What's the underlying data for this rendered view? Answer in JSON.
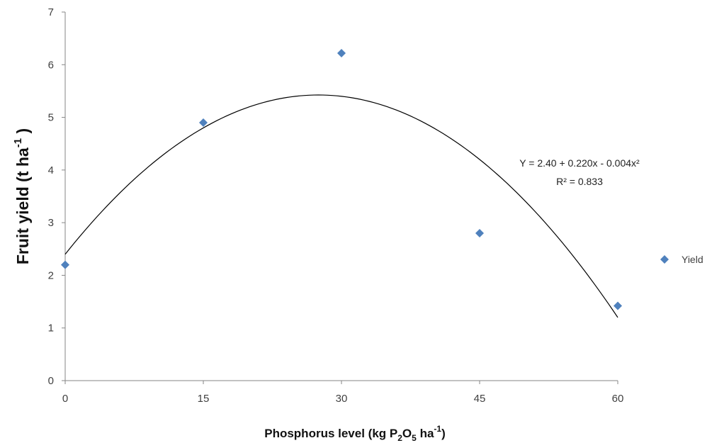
{
  "chart_data": {
    "type": "scatter",
    "x": [
      0,
      15,
      30,
      45,
      60
    ],
    "series": [
      {
        "name": "Yield",
        "values": [
          2.2,
          4.9,
          6.22,
          2.8,
          1.42
        ],
        "color": "#4f81bd",
        "marker": "diamond"
      }
    ],
    "trendline": {
      "kind": "polynomial-2",
      "coefficients": [
        2.4,
        0.22,
        -0.004
      ],
      "equation_text": "Y = 2.40 + 0.220x - 0.004x²",
      "r2_text": "R² = 0.833",
      "color": "#000000"
    },
    "xlim": [
      0,
      60
    ],
    "ylim": [
      0,
      7
    ],
    "xticks": [
      "0",
      "15",
      "30",
      "45",
      "60"
    ],
    "yticks": [
      "0",
      "1",
      "2",
      "3",
      "4",
      "5",
      "6",
      "7"
    ],
    "xlabel": {
      "main": "Phosphorus level (kg P",
      "sub1": "2",
      "mid1": "O",
      "sub2": "5",
      "mid2": " ha",
      "sup": "-1",
      "end": ")"
    },
    "ylabel": {
      "main": "Fruit yield (t ha",
      "sup": "-1",
      "end": " )"
    },
    "legend_position": "right",
    "grid": false
  }
}
